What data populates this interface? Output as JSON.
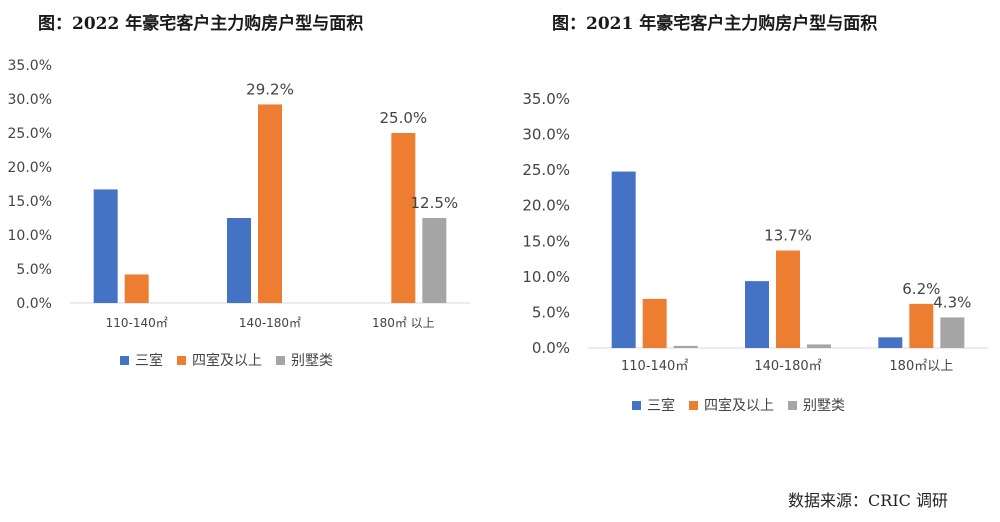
{
  "colors": {
    "series": [
      "#4472C4",
      "#ED7D31",
      "#A5A5A5"
    ],
    "axis": "#D9D9D9",
    "text": "#444444"
  },
  "chart_data": [
    {
      "type": "bar",
      "title": "图：2022 年豪宅客户主力购房户型与面积",
      "categories": [
        "110-140㎡",
        "140-180㎡",
        "180㎡ 以上"
      ],
      "series": [
        {
          "name": "三室",
          "values": [
            16.7,
            12.5,
            0
          ]
        },
        {
          "name": "四室及以上",
          "values": [
            4.2,
            29.2,
            25.0
          ]
        },
        {
          "name": "别墅类",
          "values": [
            0,
            0,
            12.5
          ]
        }
      ],
      "data_labels": [
        {
          "series": 1,
          "category": 1,
          "text": "29.2%"
        },
        {
          "series": 1,
          "category": 2,
          "text": "25.0%"
        },
        {
          "series": 2,
          "category": 2,
          "text": "12.5%"
        }
      ],
      "yticks": [
        "0.0%",
        "5.0%",
        "10.0%",
        "15.0%",
        "20.0%",
        "25.0%",
        "30.0%",
        "35.0%"
      ],
      "ylim": [
        0,
        35
      ],
      "xlabel": "",
      "ylabel": "",
      "grid": false,
      "legend": "bottom"
    },
    {
      "type": "bar",
      "title": "图：2021 年豪宅客户主力购房户型与面积",
      "categories": [
        "110-140㎡",
        "140-180㎡",
        "180㎡以上"
      ],
      "series": [
        {
          "name": "三室",
          "values": [
            24.8,
            9.4,
            1.5
          ]
        },
        {
          "name": "四室及以上",
          "values": [
            6.9,
            13.7,
            6.2
          ]
        },
        {
          "name": "别墅类",
          "values": [
            0.3,
            0.5,
            4.3
          ]
        }
      ],
      "data_labels": [
        {
          "series": 1,
          "category": 1,
          "text": "13.7%"
        },
        {
          "series": 1,
          "category": 2,
          "text": "6.2%"
        },
        {
          "series": 2,
          "category": 2,
          "text": "4.3%"
        }
      ],
      "yticks": [
        "0.0%",
        "5.0%",
        "10.0%",
        "15.0%",
        "20.0%",
        "25.0%",
        "30.0%",
        "35.0%"
      ],
      "ylim": [
        0,
        35
      ],
      "xlabel": "",
      "ylabel": "",
      "grid": false,
      "legend": "bottom"
    }
  ],
  "legend_items": [
    "三室",
    "四室及以上",
    "别墅类"
  ],
  "source_note": "数据来源：CRIC 调研"
}
